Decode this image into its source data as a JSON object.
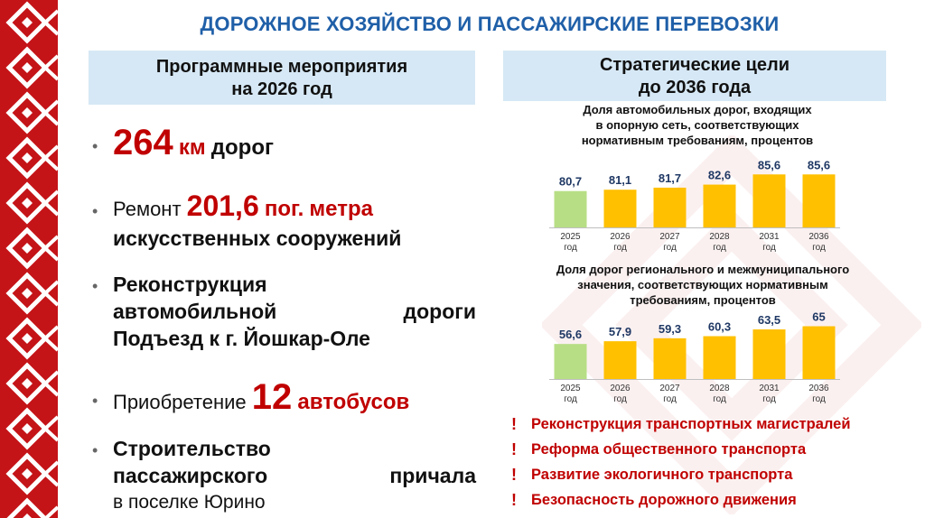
{
  "title": "ДОРОЖНОЕ ХОЗЯЙСТВО И ПАССАЖИРСКИЕ ПЕРЕВОЗКИ",
  "colors": {
    "border_red": "#c41418",
    "accent_red": "#c00000",
    "title_blue": "#1f5fa8",
    "box_blue": "#d6e8f5",
    "bar_green": "#b7de85",
    "bar_yellow": "#ffc000"
  },
  "left_panel": {
    "header": [
      "Программные мероприятия",
      "на 2026 год"
    ],
    "items": {
      "roads": {
        "value": "264",
        "unit": "км",
        "text": "дорог"
      },
      "repair": {
        "prefix": "Ремонт",
        "value": "201,6",
        "unit1": "пог.",
        "unit2": "метра",
        "line2": "искусственных сооружений"
      },
      "reconstruction": {
        "l1": "Реконструкция",
        "l2a": "автомобильной",
        "l2b": "дороги",
        "l3": "Подъезд к г. Йошкар-Оле"
      },
      "buses": {
        "prefix": "Приобретение",
        "value": "12",
        "text": "автобусов"
      },
      "pier": {
        "l1": "Строительство",
        "l2a": "пассажирского",
        "l2b": "причала",
        "l3": "в поселке Юрино"
      }
    }
  },
  "right_panel": {
    "header": [
      "Стратегические цели",
      "до 2036 года"
    ],
    "goals": [
      "Реконструкция транспортных магистралей",
      "Реформа общественного транспорта",
      "Развитие экологичного транспорта",
      "Безопасность дорожного движения"
    ]
  },
  "chart_data": [
    {
      "type": "bar",
      "title_lines": [
        "Доля автомобильных дорог, входящих",
        "в опорную сеть, соответствующих",
        "нормативным требованиям, процентов"
      ],
      "categories": [
        "2025",
        "2026",
        "2027",
        "2028",
        "2031",
        "2036"
      ],
      "category_suffix": "год",
      "values": [
        80.7,
        81.1,
        81.7,
        82.6,
        85.6,
        85.6
      ],
      "labels": [
        "80,7",
        "81,1",
        "81,7",
        "82,6",
        "85,6",
        "85,6"
      ],
      "ylim": [
        70,
        87
      ],
      "grid": false
    },
    {
      "type": "bar",
      "title_lines": [
        "Доля дорог регионального и межмуниципального",
        "значения, соответствующих нормативным",
        "требованиям, процентов"
      ],
      "categories": [
        "2025",
        "2026",
        "2027",
        "2028",
        "2031",
        "2036"
      ],
      "category_suffix": "год",
      "values": [
        56.6,
        57.9,
        59.3,
        60.3,
        63.5,
        65
      ],
      "labels": [
        "56,6",
        "57,9",
        "59,3",
        "60,3",
        "63,5",
        "65"
      ],
      "ylim": [
        40,
        66.5
      ],
      "grid": false
    }
  ]
}
